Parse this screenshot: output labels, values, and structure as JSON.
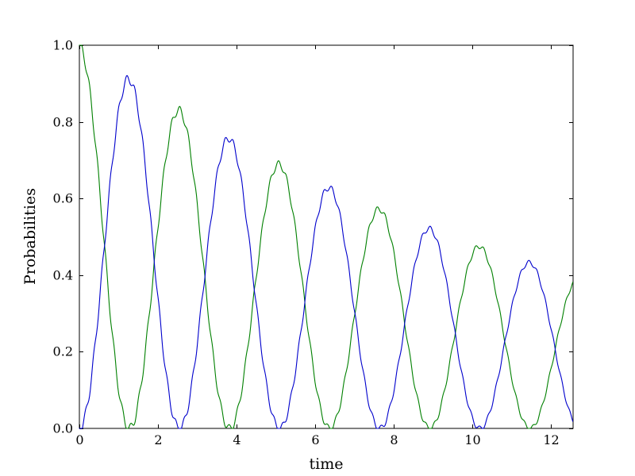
{
  "figure": {
    "background": "#ffffff",
    "frame_color": "#000000",
    "tick_color": "#000000",
    "tick_label_color": "#000000"
  },
  "chart_data": {
    "type": "line",
    "title": "",
    "xlabel": "time",
    "ylabel": "Probabilities",
    "xlim": [
      0,
      12.57
    ],
    "ylim": [
      0.0,
      1.0
    ],
    "grid": false,
    "legend": "none",
    "xticks": {
      "values": [
        0,
        2,
        4,
        6,
        8,
        10,
        12
      ],
      "labels": [
        "0",
        "2",
        "4",
        "6",
        "8",
        "10",
        "12"
      ]
    },
    "yticks": {
      "values": [
        0.0,
        0.2,
        0.4,
        0.6,
        0.8,
        1.0
      ],
      "labels": [
        "0.0",
        "0.2",
        "0.4",
        "0.6",
        "0.8",
        "1.0"
      ]
    },
    "sampling_dx": 0.02,
    "series": [
      {
        "name": "probability-green",
        "color": "#008000",
        "model": {
          "form": "cos2",
          "amplitude": 1.0,
          "decay_tau": 13.7,
          "period": 2.55,
          "ripple_amplitude": 0.013,
          "ripple_period": 0.209,
          "ripple_sign": 1
        },
        "peaks_read_from_plot": [
          [
            0,
            0.98
          ],
          [
            2.55,
            0.83
          ],
          [
            5.1,
            0.69
          ],
          [
            7.65,
            0.57
          ],
          [
            10.2,
            0.47
          ],
          [
            12.57,
            0.37
          ]
        ],
        "minima_read_from_plot": [
          [
            1.28,
            0.01
          ],
          [
            3.83,
            0.01
          ],
          [
            6.38,
            0.01
          ],
          [
            8.93,
            0.01
          ],
          [
            11.48,
            0.01
          ]
        ]
      },
      {
        "name": "probability-blue",
        "color": "#0000cc",
        "model": {
          "form": "sin2",
          "amplitude": 1.0,
          "decay_tau": 13.7,
          "period": 2.55,
          "ripple_amplitude": 0.013,
          "ripple_period": 0.209,
          "ripple_sign": -1
        },
        "peaks_read_from_plot": [
          [
            1.28,
            0.91
          ],
          [
            3.83,
            0.75
          ],
          [
            6.38,
            0.63
          ],
          [
            8.93,
            0.52
          ],
          [
            11.48,
            0.43
          ]
        ],
        "minima_read_from_plot": [
          [
            0,
            0.0
          ],
          [
            2.55,
            0.01
          ],
          [
            5.1,
            0.01
          ],
          [
            7.65,
            0.01
          ],
          [
            10.2,
            0.01
          ],
          [
            12.57,
            0.05
          ]
        ]
      }
    ]
  }
}
